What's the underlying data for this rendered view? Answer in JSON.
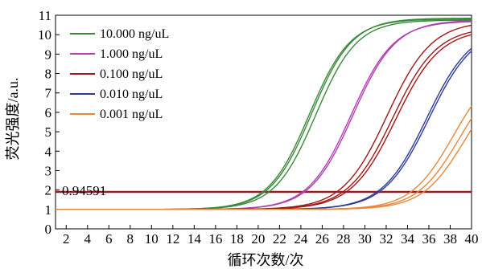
{
  "chart_data": {
    "type": "line",
    "xlabel": "循环次数/次",
    "ylabel": "荧光强度/a.u.",
    "xlim": [
      1,
      40
    ],
    "ylim": [
      0,
      11
    ],
    "x_ticks": [
      2,
      4,
      6,
      8,
      10,
      12,
      14,
      16,
      18,
      20,
      22,
      24,
      26,
      28,
      30,
      32,
      34,
      36,
      38,
      40
    ],
    "y_ticks": [
      0,
      1,
      2,
      3,
      4,
      5,
      6,
      7,
      8,
      9,
      10,
      11
    ],
    "grid": false,
    "legend_position": "top-left",
    "threshold": {
      "value": 1.9,
      "label": "0.94591",
      "color": "#9b1c1c"
    },
    "baseline": 1.0,
    "series": [
      {
        "name": "10.000 ng/uL",
        "color": "#3a8a3a",
        "replicates": [
          {
            "midpoint": 25.0,
            "plateau": 10.85,
            "slope": 0.52
          },
          {
            "midpoint": 25.4,
            "plateau": 10.75,
            "slope": 0.52
          },
          {
            "midpoint": 24.8,
            "plateau": 10.8,
            "slope": 0.52
          }
        ]
      },
      {
        "name": "1.000 ng/uL",
        "color": "#b040b0",
        "replicates": [
          {
            "midpoint": 28.7,
            "plateau": 10.7,
            "slope": 0.5
          },
          {
            "midpoint": 28.9,
            "plateau": 10.75,
            "slope": 0.5
          }
        ]
      },
      {
        "name": "0.100 ng/uL",
        "color": "#a01818",
        "replicates": [
          {
            "midpoint": 32.1,
            "plateau": 10.7,
            "slope": 0.48
          },
          {
            "midpoint": 32.6,
            "plateau": 10.4,
            "slope": 0.48
          },
          {
            "midpoint": 32.9,
            "plateau": 10.3,
            "slope": 0.48
          }
        ]
      },
      {
        "name": "0.010 ng/uL",
        "color": "#2e3a9a",
        "replicates": [
          {
            "midpoint": 35.8,
            "plateau": 10.4,
            "slope": 0.48
          },
          {
            "midpoint": 36.0,
            "plateau": 10.35,
            "slope": 0.48
          }
        ]
      },
      {
        "name": "0.001 ng/uL",
        "color": "#e8883a",
        "replicates": [
          {
            "midpoint": 38.3,
            "plateau": 8.6,
            "slope": 0.5
          },
          {
            "midpoint": 38.9,
            "plateau": 8.4,
            "slope": 0.5
          },
          {
            "midpoint": 39.4,
            "plateau": 8.2,
            "slope": 0.5
          }
        ]
      }
    ]
  }
}
